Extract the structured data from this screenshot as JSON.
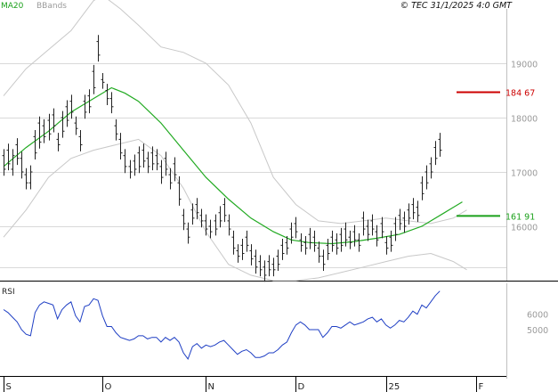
{
  "chart_data": [
    {
      "type": "line",
      "panel": "price",
      "legend": [
        "MA20",
        "BBands"
      ],
      "header_right": "© TEC 31/1/2025 4:0 GMT",
      "ylim": [
        15000,
        20000
      ],
      "y_ticks": [
        {
          "value": 16000,
          "label": "16000"
        },
        {
          "value": 17000,
          "label": "17000"
        },
        {
          "value": 18000,
          "label": "18000"
        },
        {
          "value": 19000,
          "label": "19000"
        }
      ],
      "x_ticks": [
        {
          "x": 0,
          "label": "S"
        },
        {
          "x": 22,
          "label": "O"
        },
        {
          "x": 45,
          "label": "N"
        },
        {
          "x": 65,
          "label": "D"
        },
        {
          "x": 85,
          "label": "25"
        },
        {
          "x": 105,
          "label": "F"
        }
      ],
      "xlim": [
        0,
        112
      ],
      "levels": [
        {
          "value": 18467,
          "label": "184 67",
          "color": "#cc0000"
        },
        {
          "value": 16191,
          "label": "161 91",
          "color": "#1aa01a"
        }
      ],
      "colors": {
        "ma": "#22aa22",
        "bands": "#c8c8c8",
        "bars": "#222222",
        "rsi": "#1f3fc4"
      },
      "series": [
        {
          "name": "MA20",
          "x": [
            0,
            5,
            10,
            15,
            20,
            24,
            27,
            30,
            35,
            40,
            45,
            50,
            55,
            60,
            64,
            68,
            73,
            78,
            83,
            88,
            93,
            98,
            102
          ],
          "values": [
            17100,
            17450,
            17750,
            18100,
            18350,
            18550,
            18450,
            18300,
            17900,
            17400,
            16900,
            16500,
            16150,
            15900,
            15750,
            15700,
            15680,
            15720,
            15780,
            15850,
            16000,
            16250,
            16450
          ]
        },
        {
          "name": "BBands upper",
          "x": [
            0,
            5,
            10,
            15,
            20,
            22,
            26,
            30,
            35,
            40,
            45,
            50,
            55,
            60,
            65,
            70,
            75,
            80,
            85,
            90,
            95,
            100,
            103
          ],
          "values": [
            18400,
            18900,
            19250,
            19600,
            20150,
            20250,
            20000,
            19700,
            19300,
            19200,
            19000,
            18600,
            17900,
            16900,
            16400,
            16100,
            16050,
            16100,
            16150,
            16100,
            16050,
            16150,
            16300
          ]
        },
        {
          "name": "BBands lower",
          "x": [
            0,
            5,
            10,
            15,
            20,
            25,
            30,
            35,
            40,
            45,
            50,
            55,
            60,
            65,
            70,
            75,
            80,
            85,
            90,
            95,
            100,
            103
          ],
          "values": [
            15800,
            16300,
            16900,
            17250,
            17400,
            17500,
            17600,
            17300,
            16700,
            15900,
            15300,
            15100,
            15000,
            15000,
            15050,
            15150,
            15250,
            15350,
            15450,
            15500,
            15350,
            15200
          ]
        }
      ],
      "ohlc": [
        [
          0,
          17300,
          17050
        ],
        [
          1,
          17400,
          17150
        ],
        [
          2,
          17050,
          17300
        ],
        [
          3,
          17500,
          17250
        ],
        [
          4,
          17250,
          17000
        ],
        [
          5,
          16950,
          16800
        ],
        [
          6,
          16800,
          17000
        ],
        [
          7,
          17650,
          17350
        ],
        [
          8,
          17900,
          17550
        ],
        [
          9,
          17850,
          17650
        ],
        [
          10,
          17950,
          17700
        ],
        [
          11,
          18050,
          17850
        ],
        [
          12,
          17600,
          17500
        ],
        [
          13,
          18000,
          17750
        ],
        [
          14,
          18200,
          17950
        ],
        [
          15,
          18300,
          18100
        ],
        [
          16,
          17900,
          17800
        ],
        [
          17,
          17650,
          17500
        ],
        [
          18,
          18300,
          18100
        ],
        [
          19,
          18400,
          18200
        ],
        [
          20,
          18850,
          18550
        ],
        [
          21,
          19400,
          19150
        ],
        [
          22,
          18700,
          18650
        ],
        [
          23,
          18500,
          18350
        ],
        [
          24,
          18350,
          18200
        ],
        [
          25,
          17850,
          17700
        ],
        [
          26,
          17600,
          17350
        ],
        [
          27,
          17300,
          17100
        ],
        [
          28,
          17100,
          17000
        ],
        [
          29,
          17200,
          17050
        ],
        [
          30,
          17350,
          17100
        ],
        [
          31,
          17400,
          17200
        ],
        [
          32,
          17250,
          17100
        ],
        [
          33,
          17350,
          17150
        ],
        [
          34,
          17300,
          17150
        ],
        [
          35,
          17100,
          16900
        ],
        [
          36,
          17250,
          17050
        ],
        [
          37,
          16950,
          16800
        ],
        [
          38,
          17150,
          16950
        ],
        [
          39,
          16800,
          16500
        ],
        [
          40,
          16200,
          16050
        ],
        [
          41,
          15950,
          15800
        ],
        [
          42,
          16300,
          16150
        ],
        [
          43,
          16400,
          16250
        ],
        [
          44,
          16200,
          16100
        ],
        [
          45,
          16100,
          15950
        ],
        [
          46,
          16000,
          15900
        ],
        [
          47,
          16100,
          15950
        ],
        [
          48,
          16250,
          16100
        ],
        [
          49,
          16400,
          16200
        ],
        [
          50,
          16100,
          15950
        ],
        [
          51,
          15800,
          15600
        ],
        [
          52,
          15550,
          15450
        ],
        [
          53,
          15650,
          15500
        ],
        [
          54,
          15800,
          15650
        ],
        [
          55,
          15550,
          15400
        ],
        [
          56,
          15450,
          15250
        ],
        [
          57,
          15350,
          15200
        ],
        [
          58,
          15250,
          15100
        ],
        [
          59,
          15350,
          15200
        ],
        [
          60,
          15300,
          15200
        ],
        [
          61,
          15450,
          15300
        ],
        [
          62,
          15650,
          15500
        ],
        [
          63,
          15700,
          15600
        ],
        [
          64,
          15950,
          15800
        ],
        [
          65,
          16050,
          15900
        ],
        [
          66,
          15750,
          15650
        ],
        [
          67,
          15700,
          15600
        ],
        [
          68,
          15850,
          15700
        ],
        [
          69,
          15800,
          15650
        ],
        [
          70,
          15600,
          15450
        ],
        [
          71,
          15450,
          15300
        ],
        [
          72,
          15650,
          15500
        ],
        [
          73,
          15800,
          15650
        ],
        [
          74,
          15750,
          15600
        ],
        [
          75,
          15850,
          15650
        ],
        [
          76,
          15950,
          15750
        ],
        [
          77,
          15800,
          15700
        ],
        [
          78,
          15900,
          15750
        ],
        [
          79,
          15750,
          15650
        ],
        [
          80,
          16150,
          15950
        ],
        [
          81,
          16000,
          15850
        ],
        [
          82,
          16100,
          15950
        ],
        [
          83,
          15900,
          15750
        ],
        [
          84,
          16050,
          15900
        ],
        [
          85,
          15700,
          15600
        ],
        [
          86,
          15800,
          15650
        ],
        [
          87,
          16050,
          15850
        ],
        [
          88,
          16200,
          16050
        ],
        [
          89,
          16150,
          16000
        ],
        [
          90,
          16300,
          16150
        ],
        [
          91,
          16400,
          16250
        ],
        [
          92,
          16350,
          16200
        ],
        [
          93,
          16800,
          16600
        ],
        [
          94,
          17000,
          16800
        ],
        [
          95,
          17150,
          17000
        ],
        [
          96,
          17450,
          17250
        ],
        [
          97,
          17600,
          17400
        ]
      ]
    },
    {
      "type": "line",
      "panel": "rsi",
      "title": "RSI",
      "ylim": [
        20,
        80
      ],
      "y_ticks": [
        {
          "value": 60,
          "label": "6000"
        },
        {
          "value": 50,
          "label": "5000"
        }
      ],
      "xlim": [
        0,
        112
      ],
      "series": [
        {
          "name": "RSI",
          "x": [
            0,
            1,
            2,
            3,
            4,
            5,
            6,
            7,
            8,
            9,
            10,
            11,
            12,
            13,
            14,
            15,
            16,
            17,
            18,
            19,
            20,
            21,
            22,
            23,
            24,
            25,
            26,
            27,
            28,
            29,
            30,
            31,
            32,
            33,
            34,
            35,
            36,
            37,
            38,
            39,
            40,
            41,
            42,
            43,
            44,
            45,
            46,
            47,
            48,
            49,
            50,
            51,
            52,
            53,
            54,
            55,
            56,
            57,
            58,
            59,
            60,
            61,
            62,
            63,
            64,
            65,
            66,
            67,
            68,
            69,
            70,
            71,
            72,
            73,
            74,
            75,
            76,
            77,
            78,
            79,
            80,
            81,
            82,
            83,
            84,
            85,
            86,
            87,
            88,
            89,
            90,
            91,
            92,
            93,
            94,
            95,
            96,
            97
          ],
          "values": [
            63,
            61,
            58,
            55,
            50,
            47,
            46,
            61,
            66,
            68,
            67,
            66,
            57,
            63,
            66,
            68,
            59,
            55,
            65,
            66,
            70,
            69,
            59,
            52,
            52,
            48,
            45,
            44,
            43,
            44,
            46,
            46,
            44,
            45,
            45,
            42,
            45,
            43,
            45,
            42,
            35,
            31,
            39,
            41,
            38,
            40,
            39,
            40,
            42,
            43,
            40,
            37,
            34,
            36,
            37,
            35,
            32,
            32,
            33,
            35,
            35,
            37,
            40,
            42,
            48,
            53,
            55,
            53,
            50,
            50,
            50,
            45,
            48,
            52,
            52,
            51,
            53,
            55,
            53,
            54,
            55,
            57,
            58,
            55,
            57,
            53,
            51,
            53,
            56,
            55,
            58,
            62,
            60,
            66,
            64,
            68,
            72,
            75
          ]
        }
      ]
    }
  ]
}
